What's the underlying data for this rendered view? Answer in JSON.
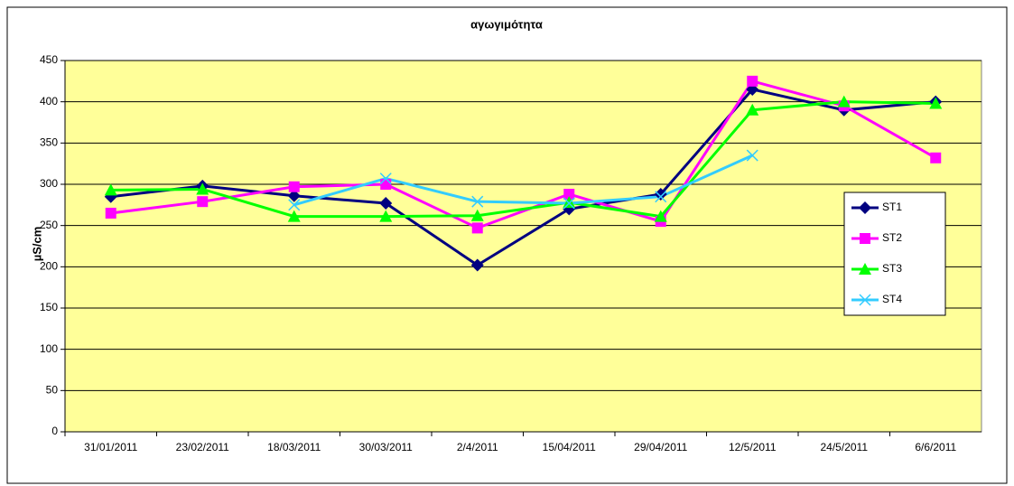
{
  "chart_data": {
    "type": "line",
    "title": "αγωγιμότητα",
    "y_label": "µS/cm",
    "categories": [
      "31/01/2011",
      "23/02/2011",
      "18/03/2011",
      "30/03/2011",
      "2/4/2011",
      "15/04/2011",
      "29/04/2011",
      "12/5/2011",
      "24/5/2011",
      "6/6/2011"
    ],
    "series": [
      {
        "name": "ST1",
        "color": "#000080",
        "marker": "diamond",
        "values": [
          285,
          298,
          286,
          277,
          202,
          270,
          288,
          415,
          390,
          400
        ]
      },
      {
        "name": "ST2",
        "color": "#ff00ff",
        "marker": "square",
        "values": [
          265,
          279,
          297,
          300,
          247,
          288,
          255,
          425,
          395,
          332
        ]
      },
      {
        "name": "ST3",
        "color": "#00ff00",
        "marker": "triangle",
        "values": [
          293,
          294,
          261,
          261,
          262,
          278,
          261,
          390,
          400,
          398
        ]
      },
      {
        "name": "ST4",
        "color": "#33ccff",
        "marker": "x",
        "values": [
          null,
          null,
          275,
          307,
          279,
          277,
          285,
          335,
          null,
          null
        ]
      }
    ],
    "ylim": [
      0,
      450
    ],
    "yticks": [
      0,
      50,
      100,
      150,
      200,
      250,
      300,
      350,
      400,
      450
    ],
    "grid": true,
    "legend": "right",
    "plot_background": "#ffff99"
  }
}
